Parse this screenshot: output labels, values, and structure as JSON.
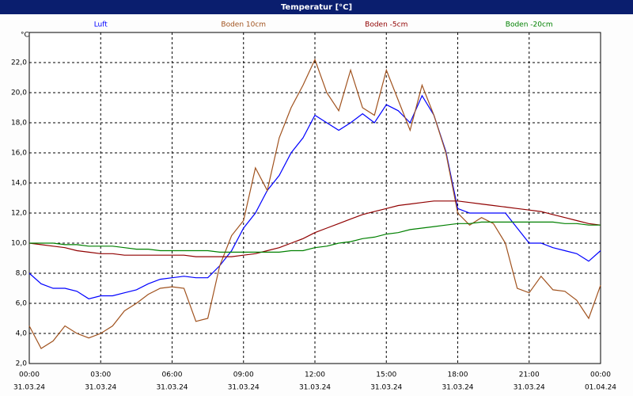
{
  "chart_data": {
    "type": "line",
    "title": "Temperatur [°C]",
    "y_label": "°C",
    "x": [
      0,
      0.5,
      1,
      1.5,
      2,
      2.5,
      3,
      3.5,
      4,
      4.5,
      5,
      5.5,
      6,
      6.5,
      7,
      7.5,
      8,
      8.5,
      9,
      9.5,
      10,
      10.5,
      11,
      11.5,
      12,
      12.5,
      13,
      13.5,
      14,
      14.5,
      15,
      15.5,
      16,
      16.5,
      17,
      17.5,
      18,
      18.5,
      19,
      19.5,
      20,
      20.5,
      21,
      21.5,
      22,
      22.5,
      23,
      23.5,
      24
    ],
    "xlim": [
      0,
      24
    ],
    "xticks": [
      {
        "value": 0,
        "label": "00:00",
        "date": "31.03.24"
      },
      {
        "value": 3,
        "label": "03:00",
        "date": "31.03.24"
      },
      {
        "value": 6,
        "label": "06:00",
        "date": "31.03.24"
      },
      {
        "value": 9,
        "label": "09:00",
        "date": "31.03.24"
      },
      {
        "value": 12,
        "label": "12:00",
        "date": "31.03.24"
      },
      {
        "value": 15,
        "label": "15:00",
        "date": "31.03.24"
      },
      {
        "value": 18,
        "label": "18:00",
        "date": "31.03.24"
      },
      {
        "value": 21,
        "label": "21:00",
        "date": "31.03.24"
      },
      {
        "value": 24,
        "label": "00:00",
        "date": "01.04.24"
      }
    ],
    "ylim": [
      2,
      24
    ],
    "yticks": [
      {
        "value": 2,
        "label": "2,0"
      },
      {
        "value": 4,
        "label": "4,0"
      },
      {
        "value": 6,
        "label": "6,0"
      },
      {
        "value": 8,
        "label": "8,0"
      },
      {
        "value": 10,
        "label": "10,0"
      },
      {
        "value": 12,
        "label": "12,0"
      },
      {
        "value": 14,
        "label": "14,0"
      },
      {
        "value": 16,
        "label": "16,0"
      },
      {
        "value": 18,
        "label": "18,0"
      },
      {
        "value": 20,
        "label": "20,0"
      },
      {
        "value": 22,
        "label": "22,0"
      }
    ],
    "grid": true,
    "legend": "top",
    "series": [
      {
        "name": "Luft",
        "color": "#0000ff",
        "values": [
          8.0,
          7.3,
          7.0,
          7.0,
          6.8,
          6.3,
          6.5,
          6.5,
          6.7,
          6.9,
          7.3,
          7.6,
          7.7,
          7.8,
          7.7,
          7.7,
          8.5,
          9.5,
          11.0,
          12.0,
          13.5,
          14.5,
          16.0,
          17.0,
          18.5,
          18.0,
          17.5,
          18.0,
          18.6,
          18.0,
          19.2,
          18.8,
          18.0,
          19.8,
          18.5,
          16.1,
          12.3,
          12.0,
          12.0,
          12.0,
          12.0,
          11.0,
          10.0,
          10.0,
          9.7,
          9.5,
          9.3,
          8.8,
          9.5
        ]
      },
      {
        "name": "Boden 10cm",
        "color": "#a0521e",
        "values": [
          4.5,
          3.0,
          3.5,
          4.5,
          4.0,
          3.7,
          4.0,
          4.5,
          5.5,
          6.0,
          6.6,
          7.0,
          7.1,
          7.0,
          4.8,
          5.0,
          8.5,
          10.5,
          11.5,
          15.0,
          13.5,
          17.0,
          19.0,
          20.5,
          22.2,
          20.0,
          18.8,
          21.5,
          19.0,
          18.5,
          21.5,
          19.5,
          17.5,
          20.5,
          18.5,
          16.0,
          12.0,
          11.2,
          11.7,
          11.3,
          10.0,
          7.0,
          6.7,
          7.8,
          6.9,
          6.8,
          6.2,
          5.0,
          7.2
        ]
      },
      {
        "name": "Boden -5cm",
        "color": "#900000",
        "values": [
          10.0,
          9.9,
          9.8,
          9.7,
          9.5,
          9.4,
          9.3,
          9.3,
          9.2,
          9.2,
          9.2,
          9.2,
          9.2,
          9.2,
          9.1,
          9.1,
          9.1,
          9.1,
          9.2,
          9.3,
          9.5,
          9.7,
          10.0,
          10.3,
          10.7,
          11.0,
          11.3,
          11.6,
          11.9,
          12.1,
          12.3,
          12.5,
          12.6,
          12.7,
          12.8,
          12.8,
          12.8,
          12.7,
          12.6,
          12.5,
          12.4,
          12.3,
          12.2,
          12.1,
          11.9,
          11.7,
          11.5,
          11.3,
          11.2
        ]
      },
      {
        "name": "Boden -20cm",
        "color": "#008000",
        "values": [
          10.0,
          10.0,
          10.0,
          9.9,
          9.9,
          9.8,
          9.8,
          9.8,
          9.7,
          9.6,
          9.6,
          9.5,
          9.5,
          9.5,
          9.5,
          9.5,
          9.4,
          9.4,
          9.4,
          9.4,
          9.4,
          9.4,
          9.5,
          9.5,
          9.7,
          9.8,
          10.0,
          10.1,
          10.3,
          10.4,
          10.6,
          10.7,
          10.9,
          11.0,
          11.1,
          11.2,
          11.3,
          11.3,
          11.4,
          11.4,
          11.4,
          11.4,
          11.4,
          11.4,
          11.4,
          11.3,
          11.3,
          11.2,
          11.2
        ]
      }
    ]
  }
}
